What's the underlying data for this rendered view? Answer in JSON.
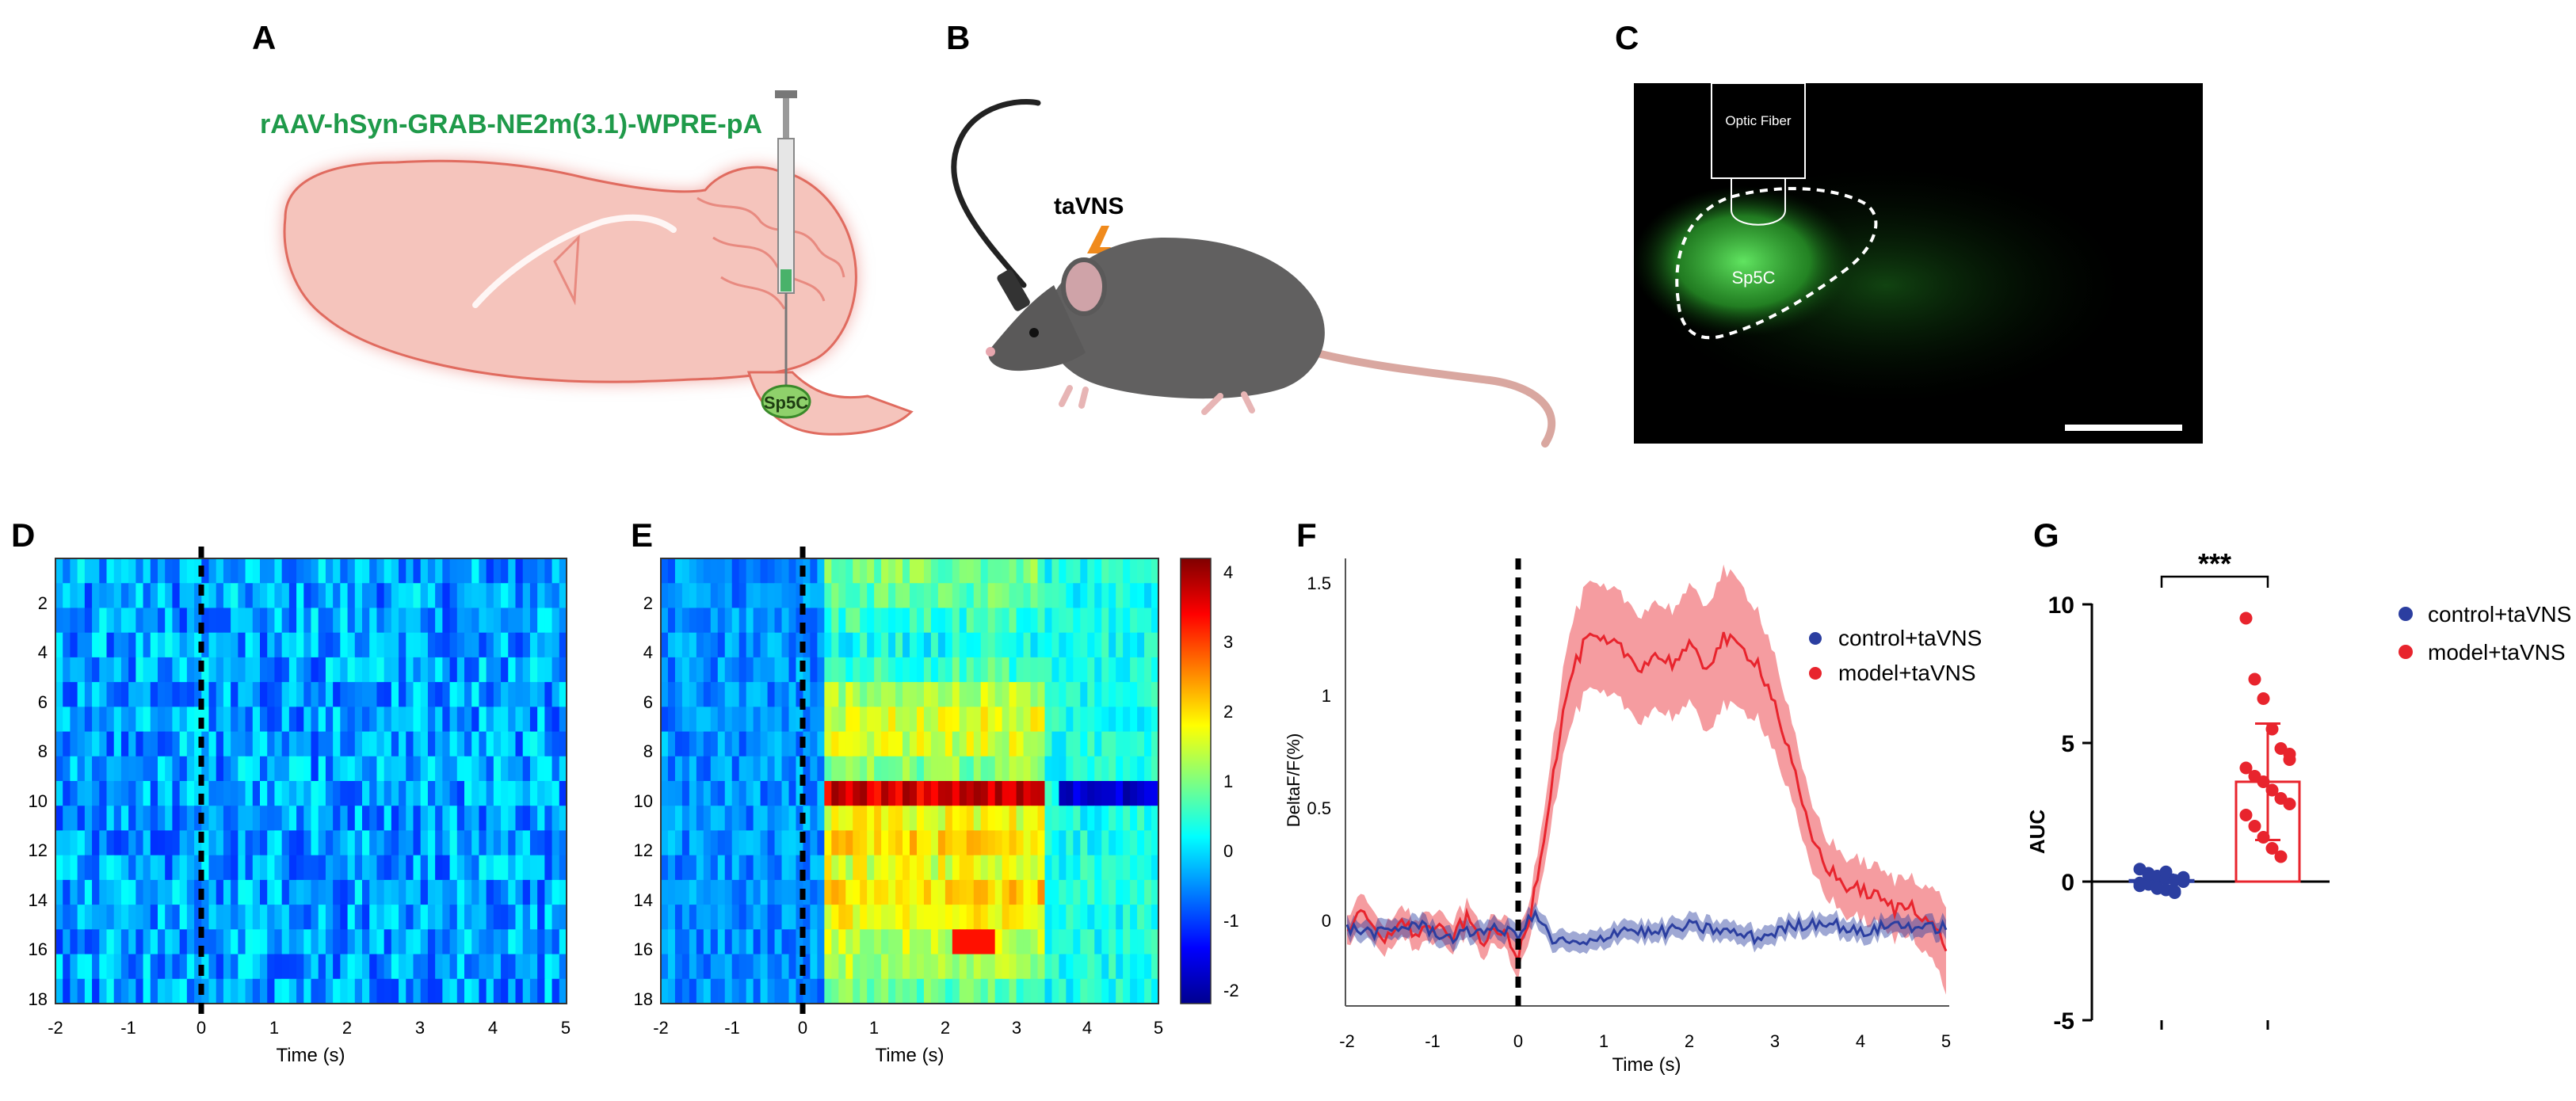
{
  "panel_letters": {
    "a": "A",
    "b": "B",
    "c": "C",
    "d": "D",
    "e": "E",
    "f": "F",
    "g": "G"
  },
  "panel_a": {
    "virus_label": "rAAV-hSyn-GRAB-NE2m(3.1)-WPRE-pA",
    "region_label": "Sp5C"
  },
  "panel_b": {
    "stim_label": "taVNS"
  },
  "panel_c": {
    "fiber_label": "Optic Fiber",
    "region_label": "Sp5C"
  },
  "colors": {
    "virus_green": "#1f9a4a",
    "brain_fill": "#f5c4bc",
    "brain_edge": "#e06b5f",
    "control_blue": "#2b3ea0",
    "model_red": "#e8242d",
    "micro_bg": "#000000",
    "micro_green": "#3fd23f"
  },
  "heatmap_common": {
    "xlabel": "Time (s)",
    "x_ticks": [
      "-2",
      "-1",
      "0",
      "1",
      "2",
      "3",
      "4",
      "5"
    ],
    "y_ticks": [
      "2",
      "4",
      "6",
      "8",
      "10",
      "12",
      "14",
      "16",
      "18"
    ],
    "colorbar_ticks": [
      "4",
      "3",
      "2",
      "1",
      "0",
      "-1",
      "-2"
    ]
  },
  "chart_data": [
    {
      "panel": "D",
      "type": "heatmap",
      "title": "",
      "xlabel": "Time (s)",
      "ylabel": "",
      "xlim": [
        -2,
        5
      ],
      "rows": 18,
      "cols": 70,
      "cell_value_range": [
        -1.2,
        0.2
      ],
      "stimulus_onset": 0
    },
    {
      "panel": "E",
      "type": "heatmap",
      "title": "",
      "xlabel": "Time (s)",
      "ylabel": "",
      "xlim": [
        -2,
        5
      ],
      "rows": 18,
      "cols": 70,
      "color_range": [
        -2.3,
        4.1
      ],
      "stimulus_onset": 0,
      "row_response_after_onset": [
        0.8,
        0.7,
        0.4,
        0.2,
        0.5,
        1.2,
        1.5,
        1.4,
        0.9,
        3.5,
        1.6,
        1.9,
        1.5,
        2.0,
        1.6,
        1.3,
        1.2,
        0.7
      ],
      "row10_late_value": -1.8,
      "row16_peak": {
        "time": 2.4,
        "value": 3.2
      }
    },
    {
      "panel": "F",
      "type": "line",
      "title": "",
      "xlabel": "Time (s)",
      "ylabel": "DeltaF/F(%)",
      "xlim": [
        -2,
        5
      ],
      "ylim": [
        -0.3,
        1.55
      ],
      "x_ticks": [
        "-2",
        "-1",
        "0",
        "1",
        "2",
        "3",
        "4",
        "5"
      ],
      "y_ticks": [
        "0",
        "0.5",
        "1",
        "1.5"
      ],
      "legend": [
        "control+taVNS",
        "model+taVNS"
      ],
      "series": [
        {
          "name": "model+taVNS",
          "x": [
            -2.0,
            -1.8,
            -1.6,
            -1.4,
            -1.2,
            -1.0,
            -0.8,
            -0.6,
            -0.4,
            -0.2,
            -0.05,
            0.0,
            0.15,
            0.3,
            0.45,
            0.6,
            0.8,
            1.0,
            1.2,
            1.4,
            1.6,
            1.8,
            2.0,
            2.2,
            2.4,
            2.6,
            2.8,
            3.0,
            3.2,
            3.4,
            3.6,
            3.8,
            4.0,
            4.2,
            4.4,
            4.6,
            4.8,
            5.0
          ],
          "y": [
            0.02,
            0.08,
            -0.04,
            0.05,
            0.0,
            0.03,
            -0.02,
            0.06,
            -0.03,
            0.02,
            -0.08,
            -0.1,
            0.1,
            0.4,
            0.75,
            1.05,
            1.22,
            1.2,
            1.18,
            1.1,
            1.15,
            1.12,
            1.18,
            1.1,
            1.22,
            1.18,
            1.12,
            0.95,
            0.7,
            0.42,
            0.28,
            0.2,
            0.18,
            0.15,
            0.1,
            0.12,
            0.05,
            -0.05
          ],
          "sem": [
            0.06,
            0.07,
            0.06,
            0.06,
            0.06,
            0.06,
            0.06,
            0.06,
            0.06,
            0.06,
            0.08,
            0.08,
            0.08,
            0.12,
            0.16,
            0.2,
            0.22,
            0.22,
            0.22,
            0.22,
            0.22,
            0.22,
            0.24,
            0.26,
            0.28,
            0.26,
            0.22,
            0.2,
            0.16,
            0.14,
            0.12,
            0.12,
            0.12,
            0.12,
            0.12,
            0.12,
            0.14,
            0.18
          ]
        },
        {
          "name": "control+taVNS",
          "x": [
            -2.0,
            -1.6,
            -1.2,
            -0.8,
            -0.4,
            0.0,
            0.2,
            0.4,
            0.8,
            1.2,
            1.6,
            2.0,
            2.4,
            2.8,
            3.2,
            3.6,
            4.0,
            4.4,
            4.8,
            5.0
          ],
          "y": [
            0.02,
            0.0,
            0.04,
            -0.02,
            0.02,
            0.0,
            0.08,
            -0.03,
            -0.05,
            0.02,
            0.0,
            0.03,
            0.01,
            -0.02,
            0.03,
            0.05,
            0.0,
            0.04,
            0.02,
            0.03
          ],
          "sem": [
            0.04,
            0.04,
            0.04,
            0.04,
            0.04,
            0.04,
            0.04,
            0.04,
            0.04,
            0.04,
            0.04,
            0.04,
            0.04,
            0.04,
            0.04,
            0.04,
            0.04,
            0.04,
            0.04,
            0.04
          ]
        }
      ]
    },
    {
      "panel": "G",
      "type": "bar",
      "title": "",
      "xlabel": "",
      "ylabel": "AUC",
      "ylim": [
        -5,
        10
      ],
      "y_ticks": [
        "10",
        "5",
        "0",
        "-5"
      ],
      "categories": [
        "control+taVNS",
        "model+taVNS"
      ],
      "values": [
        0.05,
        3.6
      ],
      "error_sd": [
        0.2,
        2.1
      ],
      "significance": "***",
      "legend": [
        "control+taVNS",
        "model+taVNS"
      ],
      "points": {
        "control+taVNS": [
          0.45,
          0.3,
          0.2,
          0.1,
          0.05,
          0.0,
          -0.05,
          -0.1,
          -0.2,
          -0.3,
          -0.35,
          0.15,
          -0.15,
          0.25,
          -0.25,
          0.35,
          -0.4,
          0.05
        ],
        "model+taVNS": [
          9.5,
          7.3,
          6.6,
          5.5,
          4.8,
          4.4,
          4.1,
          3.8,
          3.6,
          3.3,
          3.0,
          2.8,
          2.4,
          2.0,
          1.6,
          1.2,
          0.9,
          4.6
        ]
      }
    }
  ]
}
